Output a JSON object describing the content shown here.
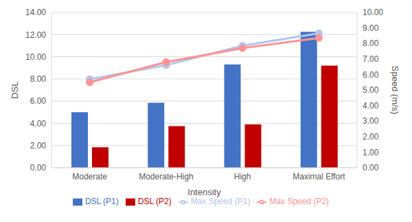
{
  "chart_data": {
    "type": "bar",
    "categories": [
      "Moderate",
      "Moderate-High",
      "High",
      "Maximal Effort"
    ],
    "x_label": "Intensity",
    "y_label": "DSL",
    "y2_label": "Speed (m/s)",
    "ylim": [
      0,
      14
    ],
    "yticks": [
      {
        "value": 0,
        "label": "0.00"
      },
      {
        "value": 2,
        "label": "2.00"
      },
      {
        "value": 4,
        "label": "4.00"
      },
      {
        "value": 6,
        "label": "6.00"
      },
      {
        "value": 8,
        "label": "8.00"
      },
      {
        "value": 10,
        "label": "10.00"
      },
      {
        "value": 12,
        "label": "12.00"
      },
      {
        "value": 14,
        "label": "14.00"
      }
    ],
    "y2lim": [
      0,
      10
    ],
    "y2ticks": [
      {
        "value": 0,
        "label": "0.00"
      },
      {
        "value": 1,
        "label": "1.00"
      },
      {
        "value": 2,
        "label": "2.00"
      },
      {
        "value": 3,
        "label": "3.00"
      },
      {
        "value": 4,
        "label": "4.00"
      },
      {
        "value": 5,
        "label": "5.00"
      },
      {
        "value": 6,
        "label": "6.00"
      },
      {
        "value": 7,
        "label": "7.00"
      },
      {
        "value": 8,
        "label": "8.00"
      },
      {
        "value": 9,
        "label": "9.00"
      },
      {
        "value": 10,
        "label": "10.00"
      }
    ],
    "grid": true,
    "legend": "bottom",
    "series": [
      {
        "name": "DSL (P1)",
        "type": "bar",
        "color": "#4472c4",
        "values": [
          5.0,
          5.85,
          9.3,
          12.25
        ]
      },
      {
        "name": "DSL (P2)",
        "type": "bar",
        "color": "#c00000",
        "values": [
          1.85,
          3.75,
          3.9,
          9.2
        ]
      },
      {
        "name": "Max Speed (P1)",
        "type": "line",
        "marker": "circle",
        "axis": "y2",
        "color": "#adc6ee",
        "values": [
          5.7,
          6.6,
          7.85,
          8.65
        ]
      },
      {
        "name": "Max Speed (P2)",
        "type": "line",
        "marker": "circle",
        "axis": "y2",
        "color": "#ff9393",
        "values": [
          5.5,
          6.8,
          7.7,
          8.35
        ]
      }
    ]
  }
}
